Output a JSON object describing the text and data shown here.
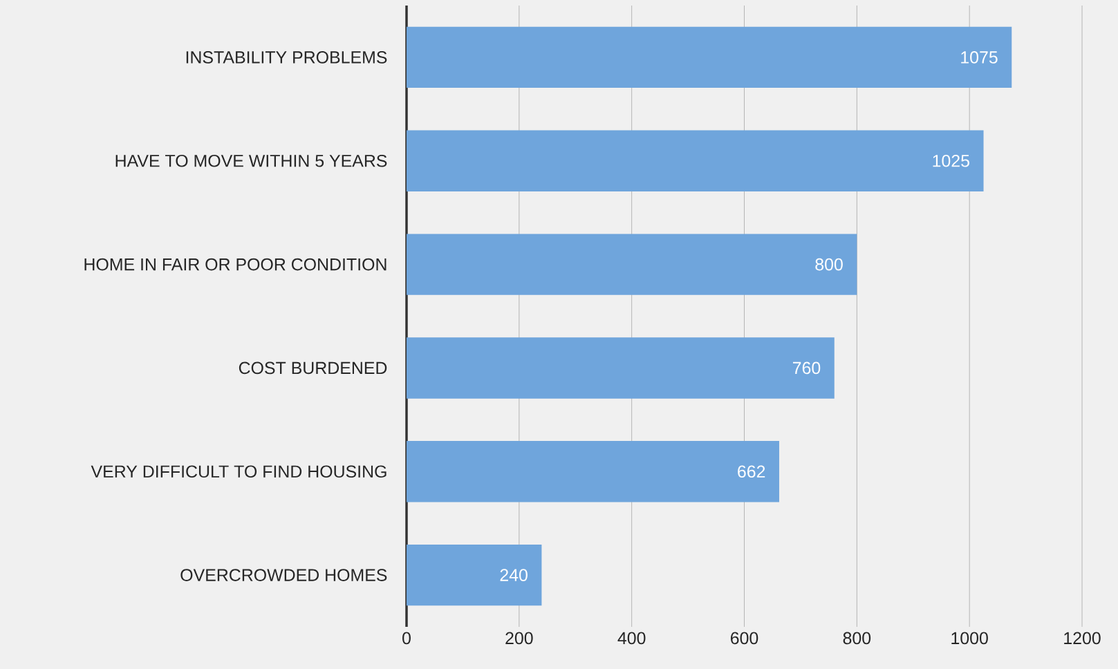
{
  "chart_data": {
    "type": "bar",
    "orientation": "horizontal",
    "categories": [
      "INSTABILITY PROBLEMS",
      "HAVE TO MOVE WITHIN 5 YEARS",
      "HOME IN FAIR OR POOR CONDITION",
      "COST BURDENED",
      "VERY DIFFICULT TO FIND HOUSING",
      "OVERCROWDED HOMES"
    ],
    "values": [
      1075,
      1025,
      800,
      760,
      662,
      240
    ],
    "color": "#6fa5dc",
    "xlim": [
      0,
      1200
    ],
    "xticks": [
      0,
      200,
      400,
      600,
      800,
      1000,
      1200
    ],
    "grid": "x",
    "data_labels": true
  }
}
